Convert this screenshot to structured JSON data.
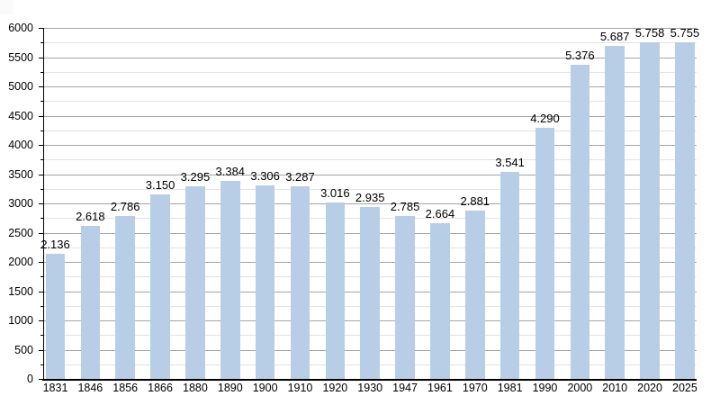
{
  "chart_data": {
    "type": "bar",
    "title": "",
    "xlabel": "",
    "ylabel": "",
    "categories": [
      "1831",
      "1846",
      "1856",
      "1866",
      "1880",
      "1890",
      "1900",
      "1910",
      "1920",
      "1930",
      "1947",
      "1961",
      "1970",
      "1981",
      "1990",
      "2000",
      "2010",
      "2020",
      "2025"
    ],
    "values": [
      2136,
      2618,
      2786,
      3150,
      3295,
      3384,
      3306,
      3287,
      3016,
      2935,
      2785,
      2664,
      2881,
      3541,
      4290,
      5376,
      5687,
      5758,
      5755
    ],
    "bar_value_labels": [
      "2.136",
      "2.618",
      "2.786",
      "3.150",
      "3.295",
      "3.384",
      "3.306",
      "3.287",
      "3.016",
      "2.935",
      "2.785",
      "2.664",
      "2.881",
      "3.541",
      "4.290",
      "5.376",
      "5.687",
      "5.758",
      "5.755"
    ],
    "ylim": [
      0,
      6000
    ],
    "y_major_step": 500,
    "y_minor_step": 250,
    "y_tick_labels": [
      "0",
      "500",
      "1000",
      "1500",
      "2000",
      "2500",
      "3000",
      "3500",
      "4000",
      "4500",
      "5000",
      "5500",
      "6000"
    ],
    "grid": "on",
    "legend": "none"
  },
  "colors": {
    "background": "#ffffff",
    "bar_fill": "#b8cee7",
    "grid_major": "#a5a5a5",
    "grid_minor": "#e2e2e2",
    "axis": "#000000",
    "text": "#000000"
  }
}
